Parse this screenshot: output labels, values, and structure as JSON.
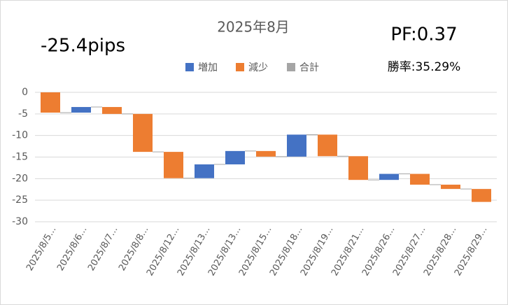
{
  "chart_data": {
    "type": "waterfall",
    "title": "2025年8月",
    "annotations": [
      "-25.4pips",
      "PF:0.37",
      "勝率:35.29%"
    ],
    "legend": [
      {
        "name": "増加",
        "color": "#4472c4"
      },
      {
        "name": "減少",
        "color": "#ed7d31"
      },
      {
        "name": "合計",
        "color": "#a5a5a5"
      }
    ],
    "categories": [
      "2025/8/5...",
      "2025/8/6...",
      "2025/8/7...",
      "2025/8/8...",
      "2025/8/12...",
      "2025/8/13...",
      "2025/8/13...",
      "2025/8/15...",
      "2025/8/18...",
      "2025/8/19...",
      "2025/8/21...",
      "2025/8/26...",
      "2025/8/27...",
      "2025/8/28...",
      "2025/8/29..."
    ],
    "values": [
      -4.7,
      1.3,
      -1.6,
      -8.8,
      -6.1,
      3.2,
      3.1,
      -1.3,
      5.1,
      -5.0,
      -5.5,
      1.4,
      -2.5,
      -1.0,
      -3.0
    ],
    "ylim": [
      -30,
      0
    ],
    "yticks": [
      0,
      -5,
      -10,
      -15,
      -20,
      -25,
      -30
    ],
    "grid": true
  }
}
